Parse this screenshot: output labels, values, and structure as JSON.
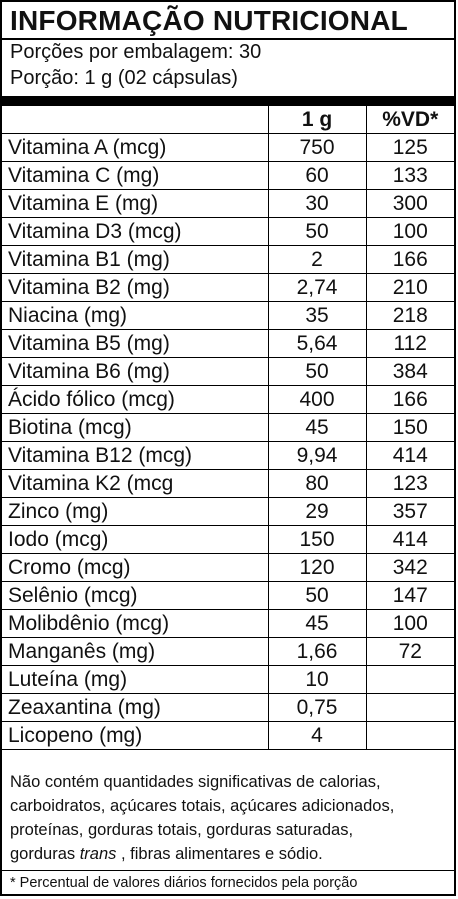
{
  "title": "INFORMAÇÃO NUTRICIONAL",
  "servings_per_package": "Porções por embalagem: 30",
  "serving_size": "Porção: 1 g (02 cápsulas)",
  "table": {
    "headers": [
      "",
      "1 g",
      "%VD*"
    ],
    "rows": [
      {
        "nutrient": "Vitamina A (mcg)",
        "amount": "750",
        "vd": "125"
      },
      {
        "nutrient": "Vitamina C (mg)",
        "amount": "60",
        "vd": "133"
      },
      {
        "nutrient": "Vitamina E (mg)",
        "amount": "30",
        "vd": "300"
      },
      {
        "nutrient": "Vitamina D3 (mcg)",
        "amount": "50",
        "vd": "100"
      },
      {
        "nutrient": "Vitamina B1 (mg)",
        "amount": "2",
        "vd": "166"
      },
      {
        "nutrient": "Vitamina B2 (mg)",
        "amount": "2,74",
        "vd": "210"
      },
      {
        "nutrient": "Niacina (mg)",
        "amount": "35",
        "vd": "218"
      },
      {
        "nutrient": "Vitamina B5 (mg)",
        "amount": "5,64",
        "vd": "112"
      },
      {
        "nutrient": "Vitamina B6 (mg)",
        "amount": "50",
        "vd": "384"
      },
      {
        "nutrient": "Ácido fólico (mcg)",
        "amount": "400",
        "vd": "166"
      },
      {
        "nutrient": "Biotina (mcg)",
        "amount": "45",
        "vd": "150"
      },
      {
        "nutrient": "Vitamina B12 (mcg)",
        "amount": "9,94",
        "vd": "414"
      },
      {
        "nutrient": "Vitamina K2 (mcg",
        "amount": "80",
        "vd": "123"
      },
      {
        "nutrient": "Zinco (mg)",
        "amount": "29",
        "vd": "357"
      },
      {
        "nutrient": "Iodo (mcg)",
        "amount": "150",
        "vd": "414"
      },
      {
        "nutrient": "Cromo (mcg)",
        "amount": "120",
        "vd": "342"
      },
      {
        "nutrient": "Selênio (mcg)",
        "amount": "50",
        "vd": "147"
      },
      {
        "nutrient": "Molibdênio (mcg)",
        "amount": "45",
        "vd": "100"
      },
      {
        "nutrient": "Manganês (mg)",
        "amount": "1,66",
        "vd": "72"
      },
      {
        "nutrient": "Luteína (mg)",
        "amount": "10",
        "vd": ""
      },
      {
        "nutrient": "Zeaxantina (mg)",
        "amount": "0,75",
        "vd": ""
      },
      {
        "nutrient": "Licopeno (mg)",
        "amount": "4",
        "vd": ""
      }
    ]
  },
  "footer": {
    "line1": "Não contém quantidades significativas de calorias,",
    "line2": "carboidratos, açúcares totais, açúcares adicionados,",
    "line3": "proteínas, gorduras totais, gorduras saturadas,",
    "line4_prefix": "gorduras",
    "line4_italic": "trans",
    "line4_suffix": ", fibras alimentares e sódio."
  },
  "note": "* Percentual de valores diários fornecidos pela porção"
}
